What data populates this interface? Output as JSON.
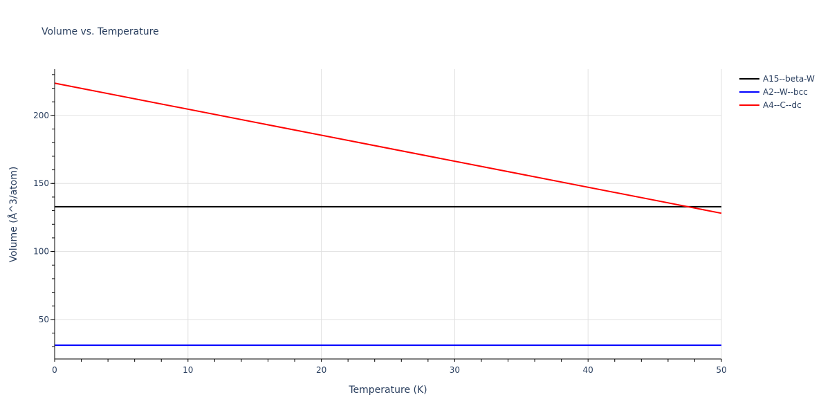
{
  "chart_data": {
    "type": "line",
    "title": "Volume vs. Temperature",
    "xlabel": "Temperature (K)",
    "ylabel": "Volume (Å^3/atom)",
    "xlim": [
      0,
      50
    ],
    "ylim": [
      21,
      234
    ],
    "x_ticks": [
      0,
      10,
      20,
      30,
      40,
      50
    ],
    "x_minor_step": 2,
    "y_ticks": [
      50,
      100,
      150,
      200
    ],
    "y_minor_step": 10,
    "grid": true,
    "legend_position": "right-top",
    "series": [
      {
        "name": "A15--beta-W",
        "color": "#000000",
        "x": [
          0,
          50
        ],
        "y": [
          132.9,
          132.9
        ]
      },
      {
        "name": "A2--W--bcc",
        "color": "#0000ff",
        "x": [
          0,
          50
        ],
        "y": [
          31.1,
          31.1
        ]
      },
      {
        "name": "A4--C--dc",
        "color": "#ff0000",
        "x": [
          0,
          50
        ],
        "y": [
          223.7,
          128.1
        ]
      }
    ]
  }
}
